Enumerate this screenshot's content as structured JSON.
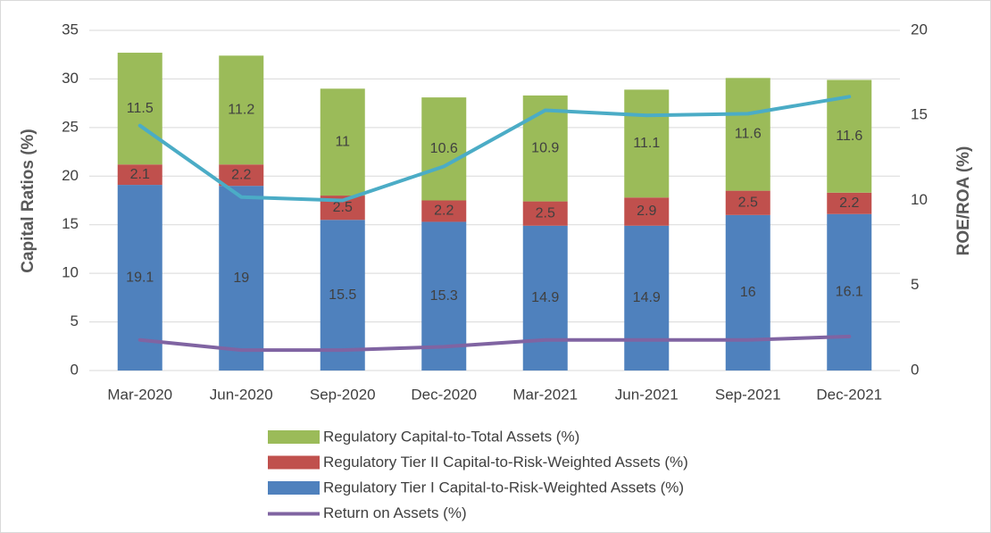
{
  "chart_data": {
    "type": "bar",
    "categories": [
      "Mar-2020",
      "Jun-2020",
      "Sep-2020",
      "Dec-2020",
      "Mar-2021",
      "Jun-2021",
      "Sep-2021",
      "Dec-2021"
    ],
    "series": [
      {
        "name": "Regulatory Tier I Capital-to-Risk-Weighted Assets (%)",
        "color": "#4f81bd",
        "type": "bar",
        "values": [
          19.1,
          19,
          15.5,
          15.3,
          14.9,
          14.9,
          16,
          16.1
        ]
      },
      {
        "name": "Regulatory Tier II Capital-to-Risk-Weighted Assets (%)",
        "color": "#c0504d",
        "type": "bar",
        "values": [
          2.1,
          2.2,
          2.5,
          2.2,
          2.5,
          2.9,
          2.5,
          2.2
        ]
      },
      {
        "name": "Regulatory Capital-to-Total Assets (%)",
        "color": "#9bbb59",
        "type": "bar",
        "values": [
          11.5,
          11.2,
          11,
          10.6,
          10.9,
          11.1,
          11.6,
          11.6
        ]
      },
      {
        "name": "Return on Assets (%)",
        "color": "#8064a2",
        "type": "line",
        "axis": "y2",
        "values": [
          1.8,
          1.2,
          1.2,
          1.4,
          1.8,
          1.8,
          1.8,
          2.0
        ]
      },
      {
        "color": "#4bacc6",
        "type": "line",
        "axis": "y2",
        "values": [
          14.4,
          10.2,
          10.0,
          12.0,
          15.3,
          15.0,
          15.1,
          16.1
        ]
      }
    ],
    "ylabel": "Capital Ratios (%)",
    "y2label": "ROE/ROA (%)",
    "ylim": [
      0,
      35
    ],
    "yticks": [
      0,
      5,
      10,
      15,
      20,
      25,
      30,
      35
    ],
    "y2lim": [
      0,
      20
    ],
    "y2ticks": [
      0,
      5,
      10,
      15,
      20
    ],
    "grid": true,
    "stacked": true,
    "legend": "bottom"
  }
}
